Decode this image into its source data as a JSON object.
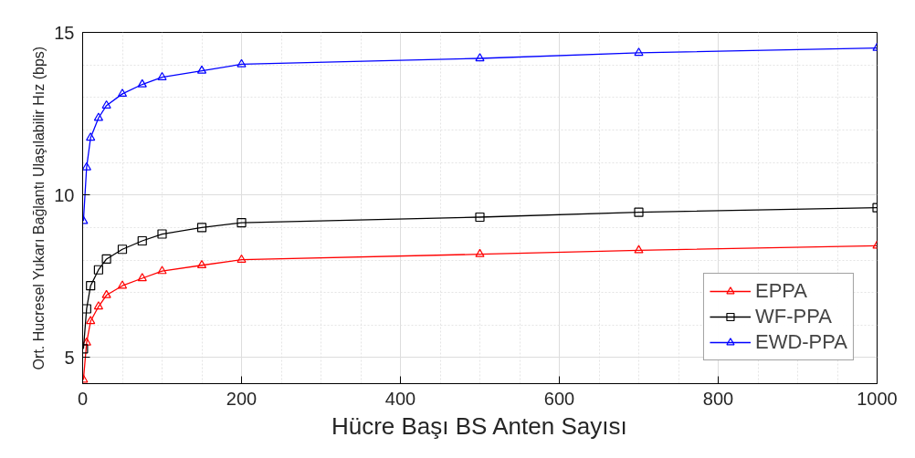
{
  "chart_data": {
    "type": "line",
    "xlabel": "Hücre Başı BS Anten Sayısı",
    "ylabel": "Ort. Hucresel Yukarı Bağlantı Ulaşılabilir Hız (bps)",
    "x": [
      1,
      5,
      10,
      20,
      30,
      50,
      75,
      100,
      150,
      200,
      500,
      700,
      1000
    ],
    "xlim": [
      0,
      1000
    ],
    "xticks": [
      0,
      200,
      400,
      600,
      800,
      1000
    ],
    "ylim": [
      4.2,
      15
    ],
    "yticks": [
      5,
      10,
      15
    ],
    "grid": true,
    "legend": "bottom right",
    "line_style": "solid",
    "series": [
      {
        "name": "EPPA",
        "color": "#ff0000",
        "marker": "triangle",
        "values": [
          4.32,
          5.46,
          6.12,
          6.57,
          6.92,
          7.21,
          7.44,
          7.66,
          7.84,
          8.01,
          8.18,
          8.3,
          8.44
        ]
      },
      {
        "name": "WF-PPA",
        "color": "#000000",
        "marker": "square",
        "values": [
          5.27,
          6.5,
          7.21,
          7.7,
          8.03,
          8.33,
          8.59,
          8.8,
          9.0,
          9.15,
          9.32,
          9.47,
          9.61
        ]
      },
      {
        "name": "EWD-PPA",
        "color": "#0000ff",
        "marker": "triangle",
        "values": [
          9.2,
          10.85,
          11.76,
          12.37,
          12.75,
          13.11,
          13.4,
          13.62,
          13.82,
          14.02,
          14.2,
          14.37,
          14.52
        ]
      }
    ]
  }
}
